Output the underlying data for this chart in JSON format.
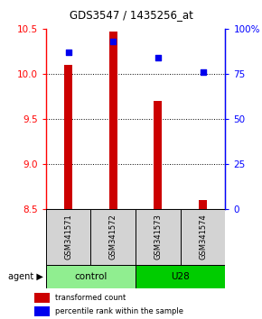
{
  "title": "GDS3547 / 1435256_at",
  "samples": [
    "GSM341571",
    "GSM341572",
    "GSM341573",
    "GSM341574"
  ],
  "transformed_counts": [
    10.1,
    10.47,
    9.7,
    8.6
  ],
  "percentile_ranks": [
    87,
    93,
    84,
    76
  ],
  "ylim_left": [
    8.5,
    10.5
  ],
  "ylim_right": [
    0,
    100
  ],
  "yticks_left": [
    8.5,
    9.0,
    9.5,
    10.0,
    10.5
  ],
  "yticks_right": [
    0,
    25,
    50,
    75,
    100
  ],
  "ytick_labels_right": [
    "0",
    "25",
    "50",
    "75",
    "100%"
  ],
  "groups": [
    {
      "label": "control",
      "indices": [
        0,
        1
      ],
      "color": "#90EE90"
    },
    {
      "label": "U28",
      "indices": [
        2,
        3
      ],
      "color": "#00CC00"
    }
  ],
  "bar_color": "#CC0000",
  "dot_color": "#0000EE",
  "bar_bottom": 8.5,
  "bar_width": 0.18,
  "label_red": "transformed count",
  "label_blue": "percentile rank within the sample",
  "sample_bg": "#d3d3d3",
  "title_fontsize": 8.5
}
